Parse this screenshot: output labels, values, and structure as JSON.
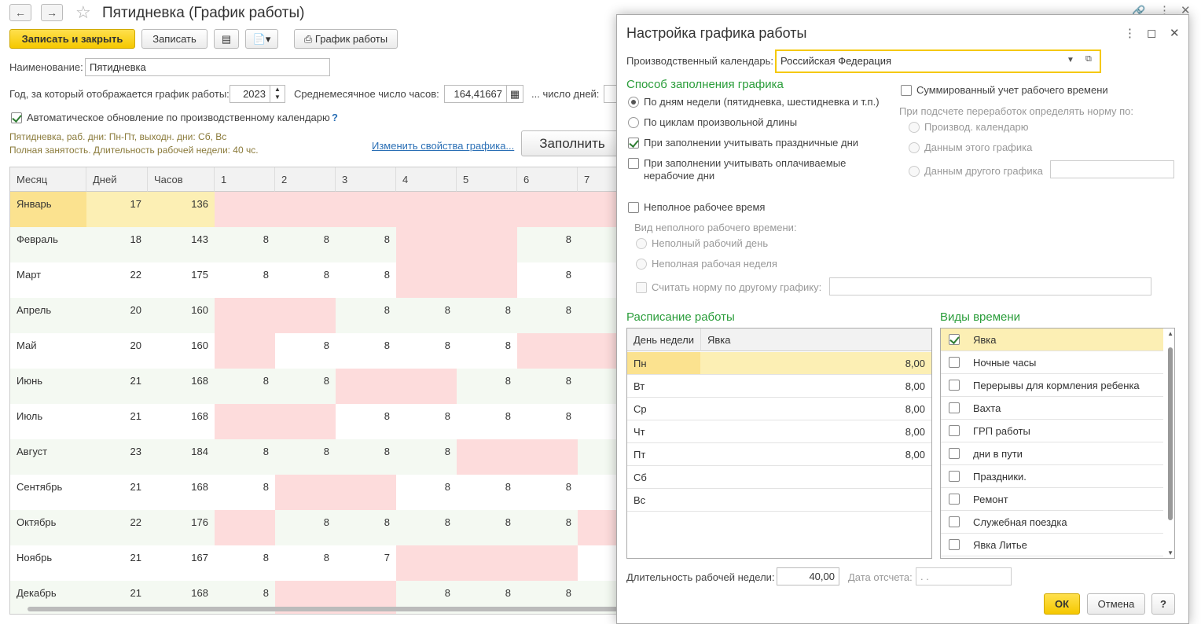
{
  "window": {
    "title": "Пятидневка (График работы)"
  },
  "toolbar": {
    "save_close": "Записать и закрыть",
    "save": "Записать",
    "schedule": "График работы"
  },
  "form": {
    "name_label": "Наименование:",
    "name_value": "Пятидневка",
    "year_label": "Год, за который отображается график работы:",
    "year_value": "2023",
    "avg_hours_label": "Среднемесячное число часов:",
    "avg_hours_value": "164,41667",
    "days_label": "... число дней:",
    "auto_update_label": "Автоматическое обновление по производственному календарю",
    "help": "?",
    "desc_line1": "Пятидневка, раб. дни: Пн-Пт, выходн. дни: Сб, Вс",
    "desc_line2": "Полная занятость. Длительность рабочей недели: 40 чс.",
    "change_link": "Изменить свойства графика...",
    "fill_button": "Заполнить"
  },
  "grid": {
    "headers": [
      "Месяц",
      "Дней",
      "Часов",
      "1",
      "2",
      "3",
      "4",
      "5",
      "6",
      "7"
    ],
    "rows": [
      {
        "month": "Январь",
        "days": "17",
        "hours": "136",
        "cells": [
          "",
          "",
          "",
          "",
          "",
          "",
          ""
        ],
        "pink": [
          1,
          1,
          1,
          1,
          1,
          1,
          1
        ]
      },
      {
        "month": "Февраль",
        "days": "18",
        "hours": "143",
        "cells": [
          "8",
          "8",
          "8",
          "",
          "",
          "8",
          ""
        ],
        "pink": [
          0,
          0,
          0,
          1,
          1,
          0,
          0
        ]
      },
      {
        "month": "Март",
        "days": "22",
        "hours": "175",
        "cells": [
          "8",
          "8",
          "8",
          "",
          "",
          "8",
          ""
        ],
        "pink": [
          0,
          0,
          0,
          1,
          1,
          0,
          0
        ]
      },
      {
        "month": "Апрель",
        "days": "20",
        "hours": "160",
        "cells": [
          "",
          "",
          "8",
          "8",
          "8",
          "8",
          ""
        ],
        "pink": [
          1,
          1,
          0,
          0,
          0,
          0,
          0
        ]
      },
      {
        "month": "Май",
        "days": "20",
        "hours": "160",
        "cells": [
          "",
          "8",
          "8",
          "8",
          "8",
          "",
          ""
        ],
        "pink": [
          1,
          0,
          0,
          0,
          0,
          1,
          1
        ]
      },
      {
        "month": "Июнь",
        "days": "21",
        "hours": "168",
        "cells": [
          "8",
          "8",
          "",
          "",
          "8",
          "8",
          ""
        ],
        "pink": [
          0,
          0,
          1,
          1,
          0,
          0,
          0
        ]
      },
      {
        "month": "Июль",
        "days": "21",
        "hours": "168",
        "cells": [
          "",
          "",
          "8",
          "8",
          "8",
          "8",
          ""
        ],
        "pink": [
          1,
          1,
          0,
          0,
          0,
          0,
          0
        ]
      },
      {
        "month": "Август",
        "days": "23",
        "hours": "184",
        "cells": [
          "8",
          "8",
          "8",
          "8",
          "",
          "",
          ""
        ],
        "pink": [
          0,
          0,
          0,
          0,
          1,
          1,
          0
        ]
      },
      {
        "month": "Сентябрь",
        "days": "21",
        "hours": "168",
        "cells": [
          "8",
          "",
          "",
          "8",
          "8",
          "8",
          ""
        ],
        "pink": [
          0,
          1,
          1,
          0,
          0,
          0,
          0
        ]
      },
      {
        "month": "Октябрь",
        "days": "22",
        "hours": "176",
        "cells": [
          "",
          "8",
          "8",
          "8",
          "8",
          "8",
          ""
        ],
        "pink": [
          1,
          0,
          0,
          0,
          0,
          0,
          1
        ]
      },
      {
        "month": "Ноябрь",
        "days": "21",
        "hours": "167",
        "cells": [
          "8",
          "8",
          "7",
          "",
          "",
          "",
          ""
        ],
        "pink": [
          0,
          0,
          0,
          1,
          1,
          1,
          0
        ]
      },
      {
        "month": "Декабрь",
        "days": "21",
        "hours": "168",
        "cells": [
          "8",
          "",
          "",
          "8",
          "8",
          "8",
          ""
        ],
        "pink": [
          0,
          1,
          1,
          0,
          0,
          0,
          0
        ]
      }
    ]
  },
  "dialog": {
    "title": "Настройка графика работы",
    "calendar_label": "Производственный календарь:",
    "calendar_value": "Российская Федерация",
    "fill_section": "Способ заполнения графика",
    "fill_by_weekdays": "По дням недели (пятидневка, шестидневка и т.п.)",
    "fill_by_cycles": "По циклам произвольной длины",
    "consider_holidays": "При заполнении учитывать праздничные дни",
    "consider_paid_nonwork_1": "При заполнении учитывать оплачиваемые",
    "consider_paid_nonwork_2": "нерабочие дни",
    "summarized": "Суммированный учет рабочего времени",
    "overtime_norm_label": "При подсчете переработок определять норму по:",
    "norm_calendar": "Производ. календарю",
    "norm_this": "Данным этого графика",
    "norm_other": "Данным другого графика",
    "part_time": "Неполное рабочее время",
    "part_time_kind": "Вид неполного рабочего времени:",
    "part_day": "Неполный рабочий день",
    "part_week": "Неполная рабочая неделя",
    "norm_other_schedule": "Считать норму по другому графику:",
    "schedule_section": "Расписание работы",
    "time_types_section": "Виды времени",
    "sched_headers": [
      "День недели",
      "Явка"
    ],
    "schedule": [
      {
        "day": "Пн",
        "value": "8,00"
      },
      {
        "day": "Вт",
        "value": "8,00"
      },
      {
        "day": "Ср",
        "value": "8,00"
      },
      {
        "day": "Чт",
        "value": "8,00"
      },
      {
        "day": "Пт",
        "value": "8,00"
      },
      {
        "day": "Сб",
        "value": ""
      },
      {
        "day": "Вс",
        "value": ""
      }
    ],
    "time_types": [
      {
        "label": "Явка",
        "checked": true
      },
      {
        "label": "Ночные часы",
        "checked": false
      },
      {
        "label": "Перерывы для кормления ребенка",
        "checked": false
      },
      {
        "label": "Вахта",
        "checked": false
      },
      {
        "label": "ГРП работы",
        "checked": false
      },
      {
        "label": "дни в пути",
        "checked": false
      },
      {
        "label": "Праздники.",
        "checked": false
      },
      {
        "label": "Ремонт",
        "checked": false
      },
      {
        "label": "Служебная поездка",
        "checked": false
      },
      {
        "label": "Явка Литье",
        "checked": false
      }
    ],
    "week_length_label": "Длительность рабочей недели:",
    "week_length_value": "40,00",
    "ref_date_label": "Дата отсчета:",
    "ref_date_value": ". .",
    "ok": "ОК",
    "cancel": "Отмена",
    "help": "?"
  },
  "colors": {
    "accent_yellow": "#f5c800",
    "pink": "#fddcdc",
    "section_green": "#2a9d3a",
    "selected_row": "#fcefb4"
  }
}
